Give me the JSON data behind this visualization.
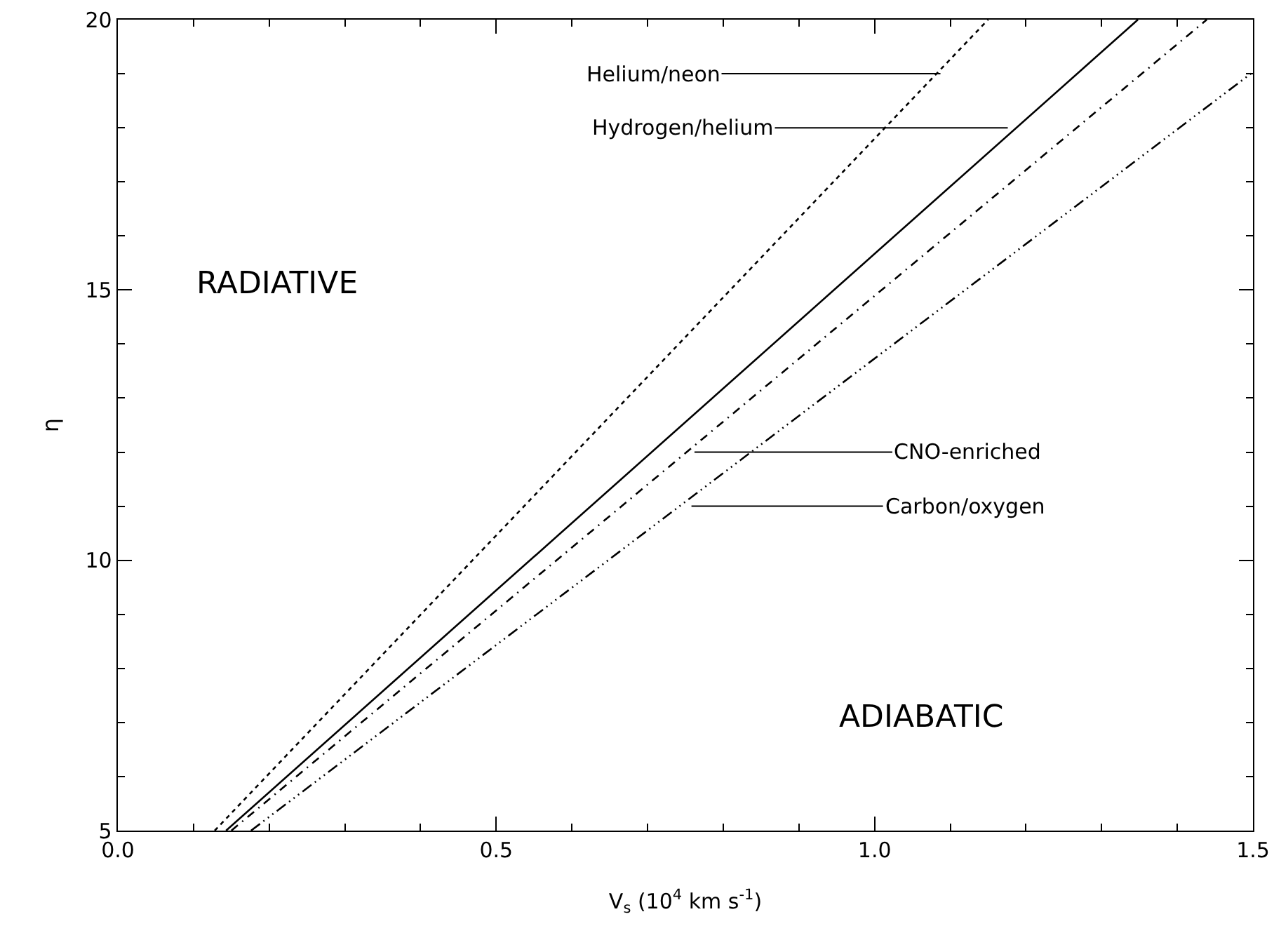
{
  "chart_data": {
    "type": "line",
    "xlabel": "V$_{s}$ (10$^{4}$ km s$^{-1}$)",
    "ylabel": "η",
    "series": [
      {
        "color": "#000000",
        "line_style": "dotted",
        "x": [
          0.128,
          1.15
        ],
        "values": [
          5,
          20
        ]
      },
      {
        "color": "#000000",
        "line_style": "solid",
        "x": [
          0.143,
          1.348
        ],
        "values": [
          5,
          20
        ]
      },
      {
        "color": "#000000",
        "line_style": "dashdot",
        "x": [
          0.15,
          1.439
        ],
        "values": [
          5,
          20
        ]
      },
      {
        "color": "#000000",
        "line_style": "dashdotdotdot",
        "x": [
          0.176,
          1.5
        ],
        "values": [
          5,
          19.03
        ]
      }
    ],
    "annotations": [
      {
        "text": "Helium/neon",
        "x": 1.087,
        "y": 19
      },
      {
        "text": "Hydrogen/helium",
        "x": 1.176,
        "y": 18
      },
      {
        "text": "CNO-enriched",
        "x": 0.762,
        "y": 12
      },
      {
        "text": "Carbon/oxygen",
        "x": 0.758,
        "y": 11
      },
      "RADIATIVE",
      "ADIABATIC"
    ],
    "xlim": [
      0,
      1.5
    ],
    "xticks": [
      {
        "value": 0,
        "label": "0.0"
      },
      0.5,
      {
        "value": 1,
        "label": "1.0"
      },
      1.5
    ],
    "ylim": [
      5,
      20
    ],
    "yticks": [
      5,
      10,
      15,
      20
    ]
  }
}
